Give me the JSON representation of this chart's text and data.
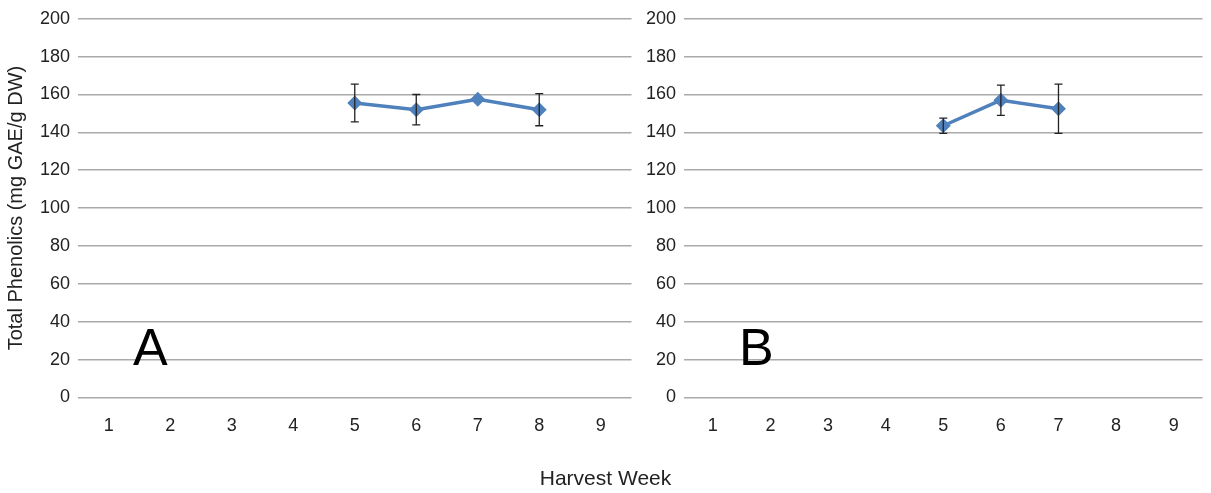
{
  "chart_data": [
    {
      "type": "line",
      "ylabel": "Total Phenolics (mg GAE/g DW)",
      "xlabel": "Harvest Week",
      "annotations": [
        "A"
      ],
      "categories": [
        "1",
        "2",
        "3",
        "4",
        "5",
        "6",
        "7",
        "8",
        "9"
      ],
      "series": [
        {
          "color": "#4f81bd",
          "values": [
            null,
            null,
            null,
            null,
            155.5,
            152,
            157.5,
            152,
            null
          ],
          "errors": [
            null,
            null,
            null,
            null,
            10,
            8,
            null,
            8.5,
            null
          ]
        }
      ],
      "ylim": [
        0,
        200
      ],
      "yticks": [
        0,
        20,
        40,
        60,
        80,
        100,
        120,
        140,
        160,
        180,
        200
      ],
      "grid": "y",
      "legend": false,
      "marker": "diamond",
      "line_style": "solid"
    },
    {
      "type": "line",
      "annotations": [
        "B"
      ],
      "categories": [
        "1",
        "2",
        "3",
        "4",
        "5",
        "6",
        "7",
        "8",
        "9"
      ],
      "series": [
        {
          "color": "#4f81bd",
          "values": [
            null,
            null,
            null,
            null,
            143.5,
            157,
            152.5,
            null,
            null
          ],
          "errors": [
            null,
            null,
            null,
            null,
            4,
            8,
            13,
            null,
            null
          ]
        }
      ],
      "ylim": [
        0,
        200
      ],
      "yticks": [
        0,
        20,
        40,
        60,
        80,
        100,
        120,
        140,
        160,
        180,
        200
      ],
      "grid": "y",
      "legend": false,
      "marker": "diamond",
      "line_style": "solid"
    }
  ]
}
